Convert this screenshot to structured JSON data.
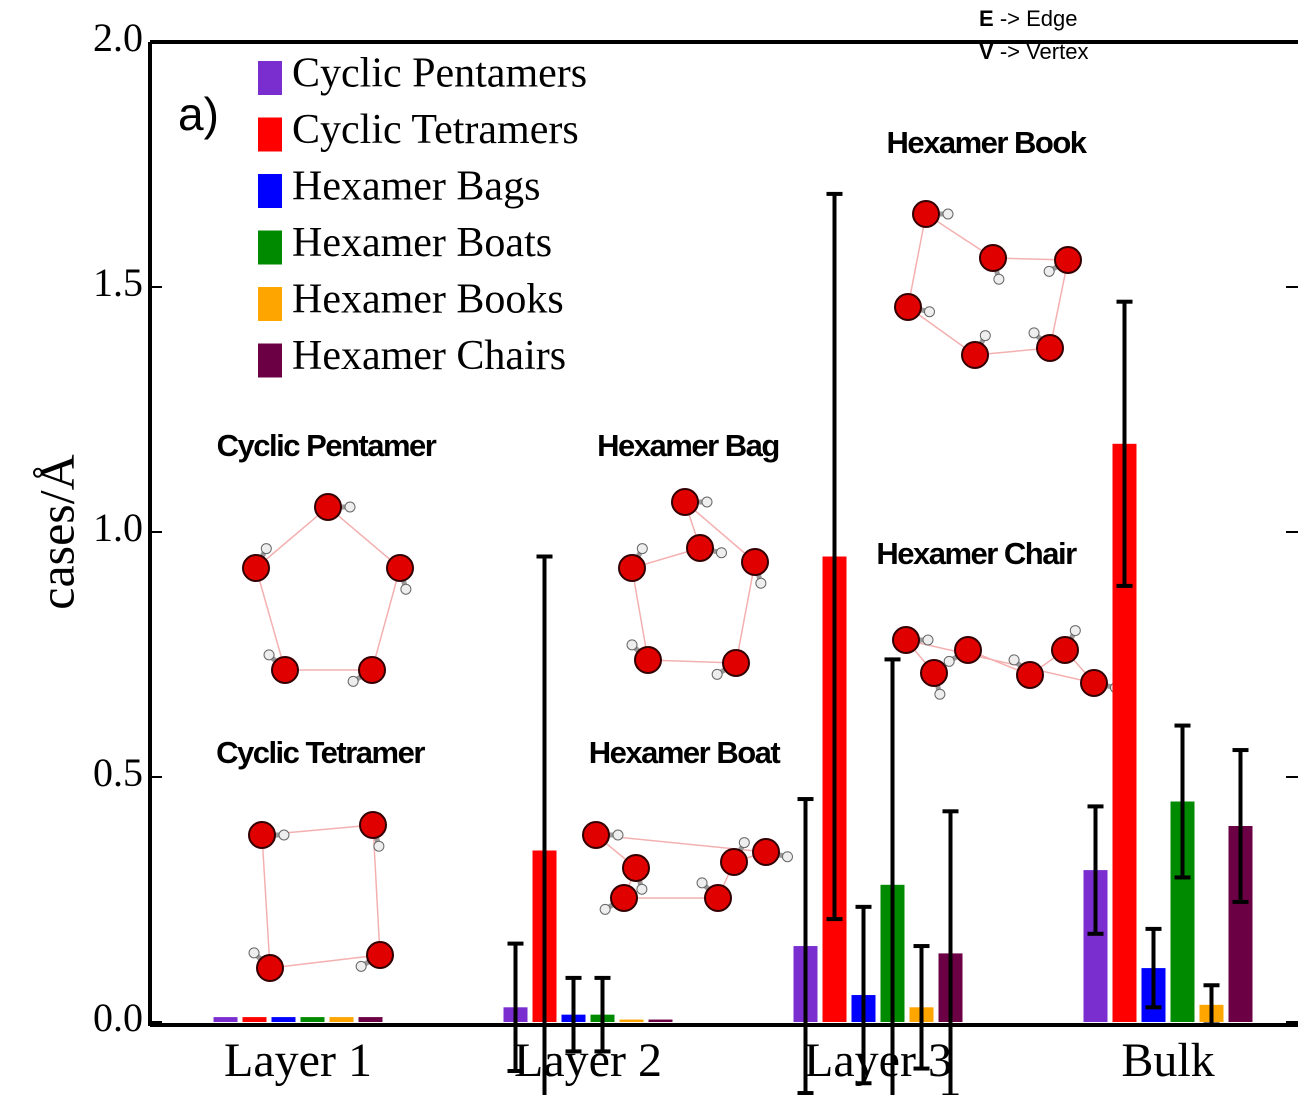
{
  "chart_data": {
    "type": "bar",
    "ylabel": "cases/Å",
    "categories": [
      "Layer 1",
      "Layer 2",
      "Layer 3",
      "Bulk"
    ],
    "series": [
      {
        "name": "Cyclic Pentamers",
        "color": "#7b2ed0",
        "values": [
          0.01,
          0.03,
          0.155,
          0.31
        ],
        "errors": [
          null,
          0.13,
          0.3,
          0.13
        ]
      },
      {
        "name": "Cyclic  Tetramers",
        "color": "#ff0000",
        "values": [
          0.01,
          0.35,
          0.95,
          1.18
        ],
        "errors": [
          null,
          0.6,
          0.74,
          0.29
        ]
      },
      {
        "name": "Hexamer Bags",
        "color": "#0000ff",
        "values": [
          0.01,
          0.015,
          0.055,
          0.11
        ],
        "errors": [
          null,
          0.075,
          0.18,
          0.08
        ]
      },
      {
        "name": "Hexamer Boats",
        "color": "#008a00",
        "values": [
          0.01,
          0.015,
          0.28,
          0.45
        ],
        "errors": [
          null,
          0.075,
          0.46,
          0.155
        ]
      },
      {
        "name": "Hexamer Books",
        "color": "#ffa500",
        "values": [
          0.01,
          0.005,
          0.03,
          0.035
        ],
        "errors": [
          null,
          null,
          0.125,
          0.04
        ]
      },
      {
        "name": "Hexamer Chairs",
        "color": "#6b0045",
        "values": [
          0.01,
          0.005,
          0.14,
          0.4
        ],
        "errors": [
          null,
          null,
          0.29,
          0.155
        ]
      }
    ],
    "ylim": [
      0,
      2.0
    ],
    "yticks": [
      {
        "value": 0,
        "label": "0.0"
      },
      {
        "value": 0.5,
        "label": "0.5"
      },
      {
        "value": 1.0,
        "label": "1.0"
      },
      {
        "value": 1.5,
        "label": "1.5"
      },
      {
        "value": 2.0,
        "label": "2.0"
      }
    ],
    "panel_label": "a)",
    "key": [
      {
        "symbol": "E",
        "text": "-> Edge"
      },
      {
        "symbol": "V",
        "text": "-> Vertex"
      }
    ],
    "structure_labels": [
      "Cyclic Pentamer",
      "Cyclic Tetramer",
      "Hexamer Bag",
      "Hexamer Boat",
      "Hexamer Book",
      "Hexamer Chair"
    ]
  }
}
